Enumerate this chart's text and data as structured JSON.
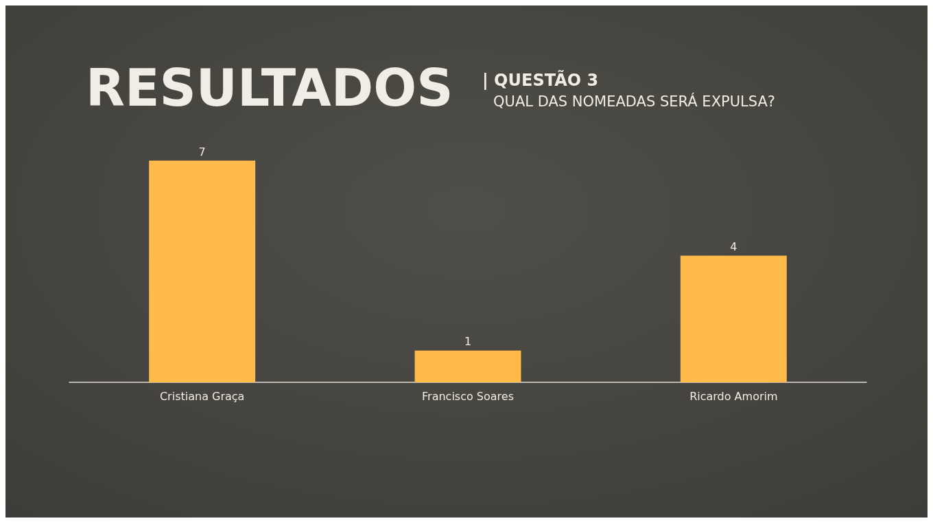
{
  "chart_data": {
    "type": "bar",
    "title": "RESULTADOS",
    "subtitle": "| QUESTÃO 3",
    "annotations": [
      "QUAL DAS NOMEADAS SERÁ EXPULSA?"
    ],
    "categories": [
      "Cristiana Graça",
      "Francisco Soares",
      "Ricardo Amorim"
    ],
    "values": [
      7,
      1,
      4
    ],
    "color": "#ffba49",
    "data_labels": true
  }
}
